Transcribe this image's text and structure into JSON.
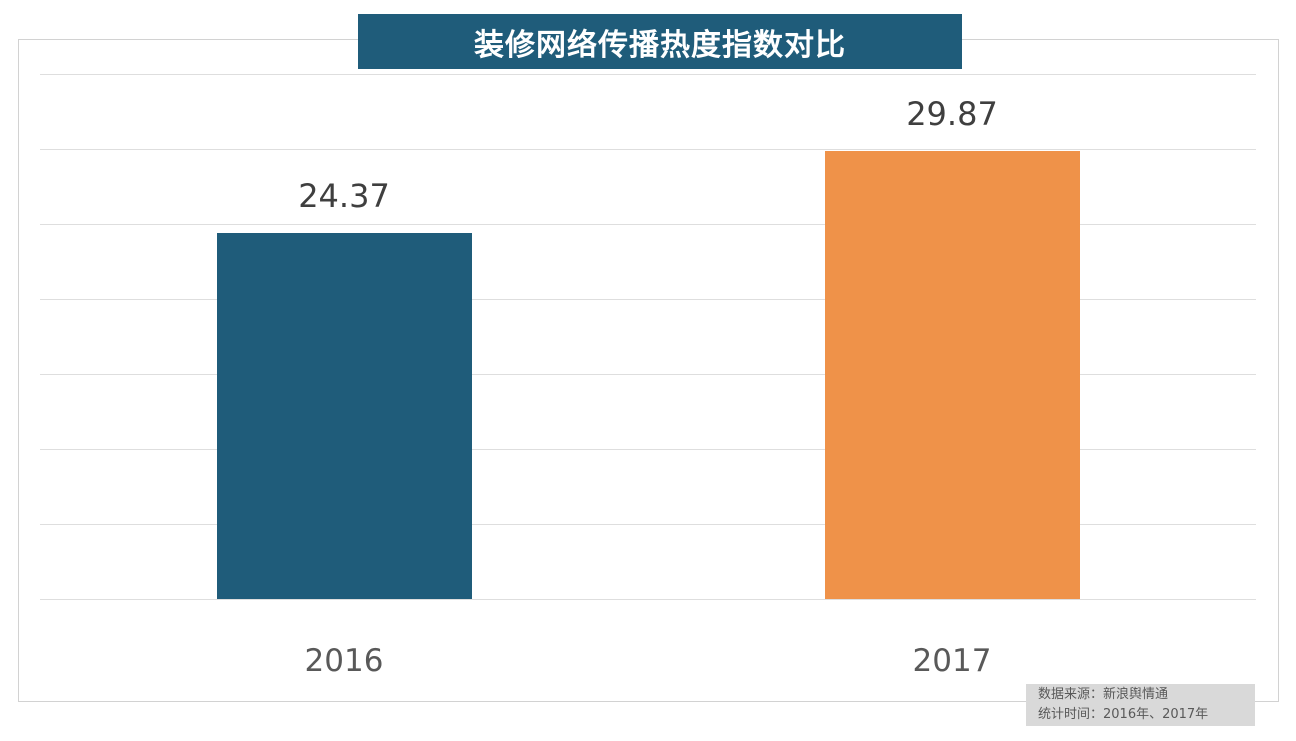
{
  "title": "装修网络传播热度指数对比",
  "source_note": {
    "line1": "数据来源：新浪舆情通",
    "line2": "统计时间：2016年、2017年"
  },
  "colors": {
    "title_bg": "#1f5c7a",
    "title_text": "#ffffff",
    "grid_line": "#dedede",
    "plot_border": "#d2d2d2",
    "value_label": "#3f3f3f",
    "axis_label": "#595959",
    "note_bg": "#d9d9d9",
    "note_text": "#595959",
    "bar_2016": "#1f5c7a",
    "bar_2017": "#ef9249"
  },
  "chart_data": {
    "type": "bar",
    "title": "装修网络传播热度指数对比",
    "categories": [
      "2016",
      "2017"
    ],
    "values": [
      24.37,
      29.87
    ],
    "value_labels": [
      "24.37",
      "29.87"
    ],
    "bar_colors": [
      "#1f5c7a",
      "#ef9249"
    ],
    "xlabel": "",
    "ylabel": "",
    "ylim": [
      0,
      35
    ],
    "grid_step": 5,
    "grid": true,
    "legend": false,
    "y_tick_labels_visible": false
  }
}
